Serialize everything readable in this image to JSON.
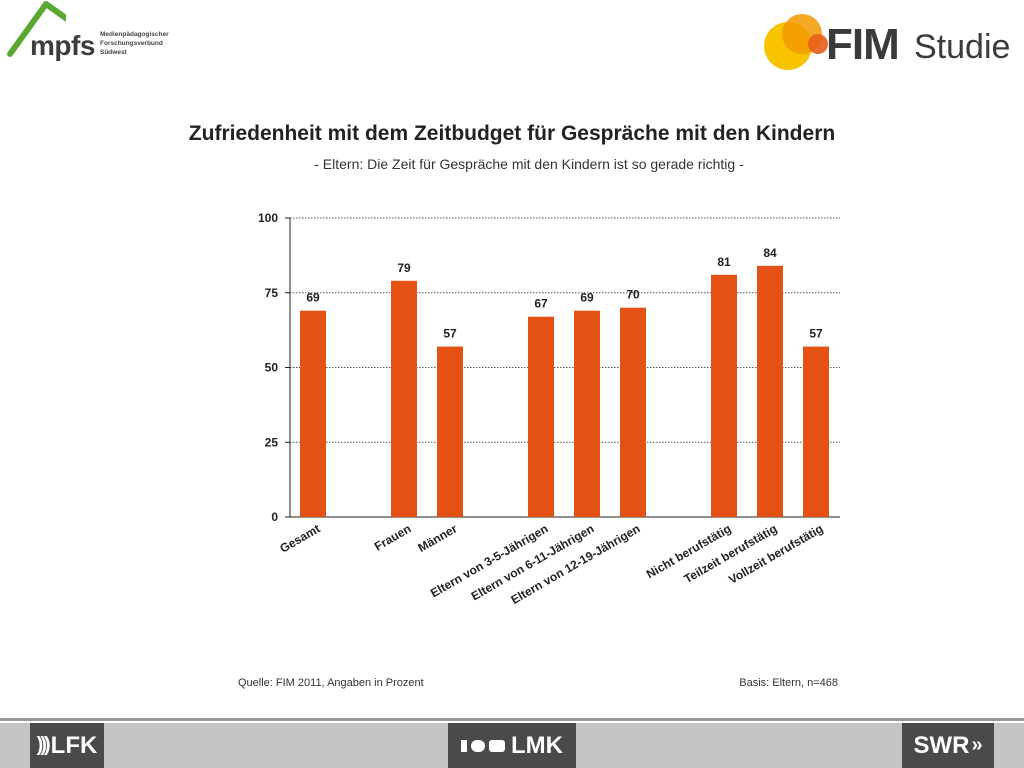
{
  "logos": {
    "mpfs": {
      "text": "mpfs",
      "subtitle_lines": [
        "Medienpädagogischer",
        "Forschungsverbund",
        "Südwest"
      ]
    },
    "fim": {
      "bold": "FIM",
      "light": "Studie"
    }
  },
  "title": "Zufriedenheit mit dem Zeitbudget für Gespräche mit den Kindern",
  "subtitle": "- Eltern: Die Zeit für Gespräche mit den Kindern ist so gerade richtig -",
  "chart_data": {
    "type": "bar",
    "categories": [
      "Gesamt",
      "Frauen",
      "Männer",
      "Eltern von 3-5-Jährigen",
      "Eltern von 6-11-Jährigen",
      "Eltern von 12-19-Jährigen",
      "Nicht berufstätig",
      "Teilzeit berufstätig",
      "Vollzeit berufstätig"
    ],
    "values": [
      69,
      79,
      57,
      67,
      69,
      70,
      81,
      84,
      57
    ],
    "groups": [
      [
        0
      ],
      [
        1,
        2
      ],
      [
        3,
        4,
        5
      ],
      [
        6,
        7,
        8
      ]
    ],
    "ylim": [
      0,
      100
    ],
    "yticks": [
      0,
      25,
      50,
      75,
      100
    ],
    "grid": true,
    "bar_color": "#e35214"
  },
  "footnotes": {
    "source": "Quelle: FIM 2011,  Angaben in Prozent",
    "basis": "Basis: Eltern, n=468"
  },
  "footer": {
    "lfk": "LFK",
    "lmk": "LMK",
    "swr": "SWR"
  }
}
